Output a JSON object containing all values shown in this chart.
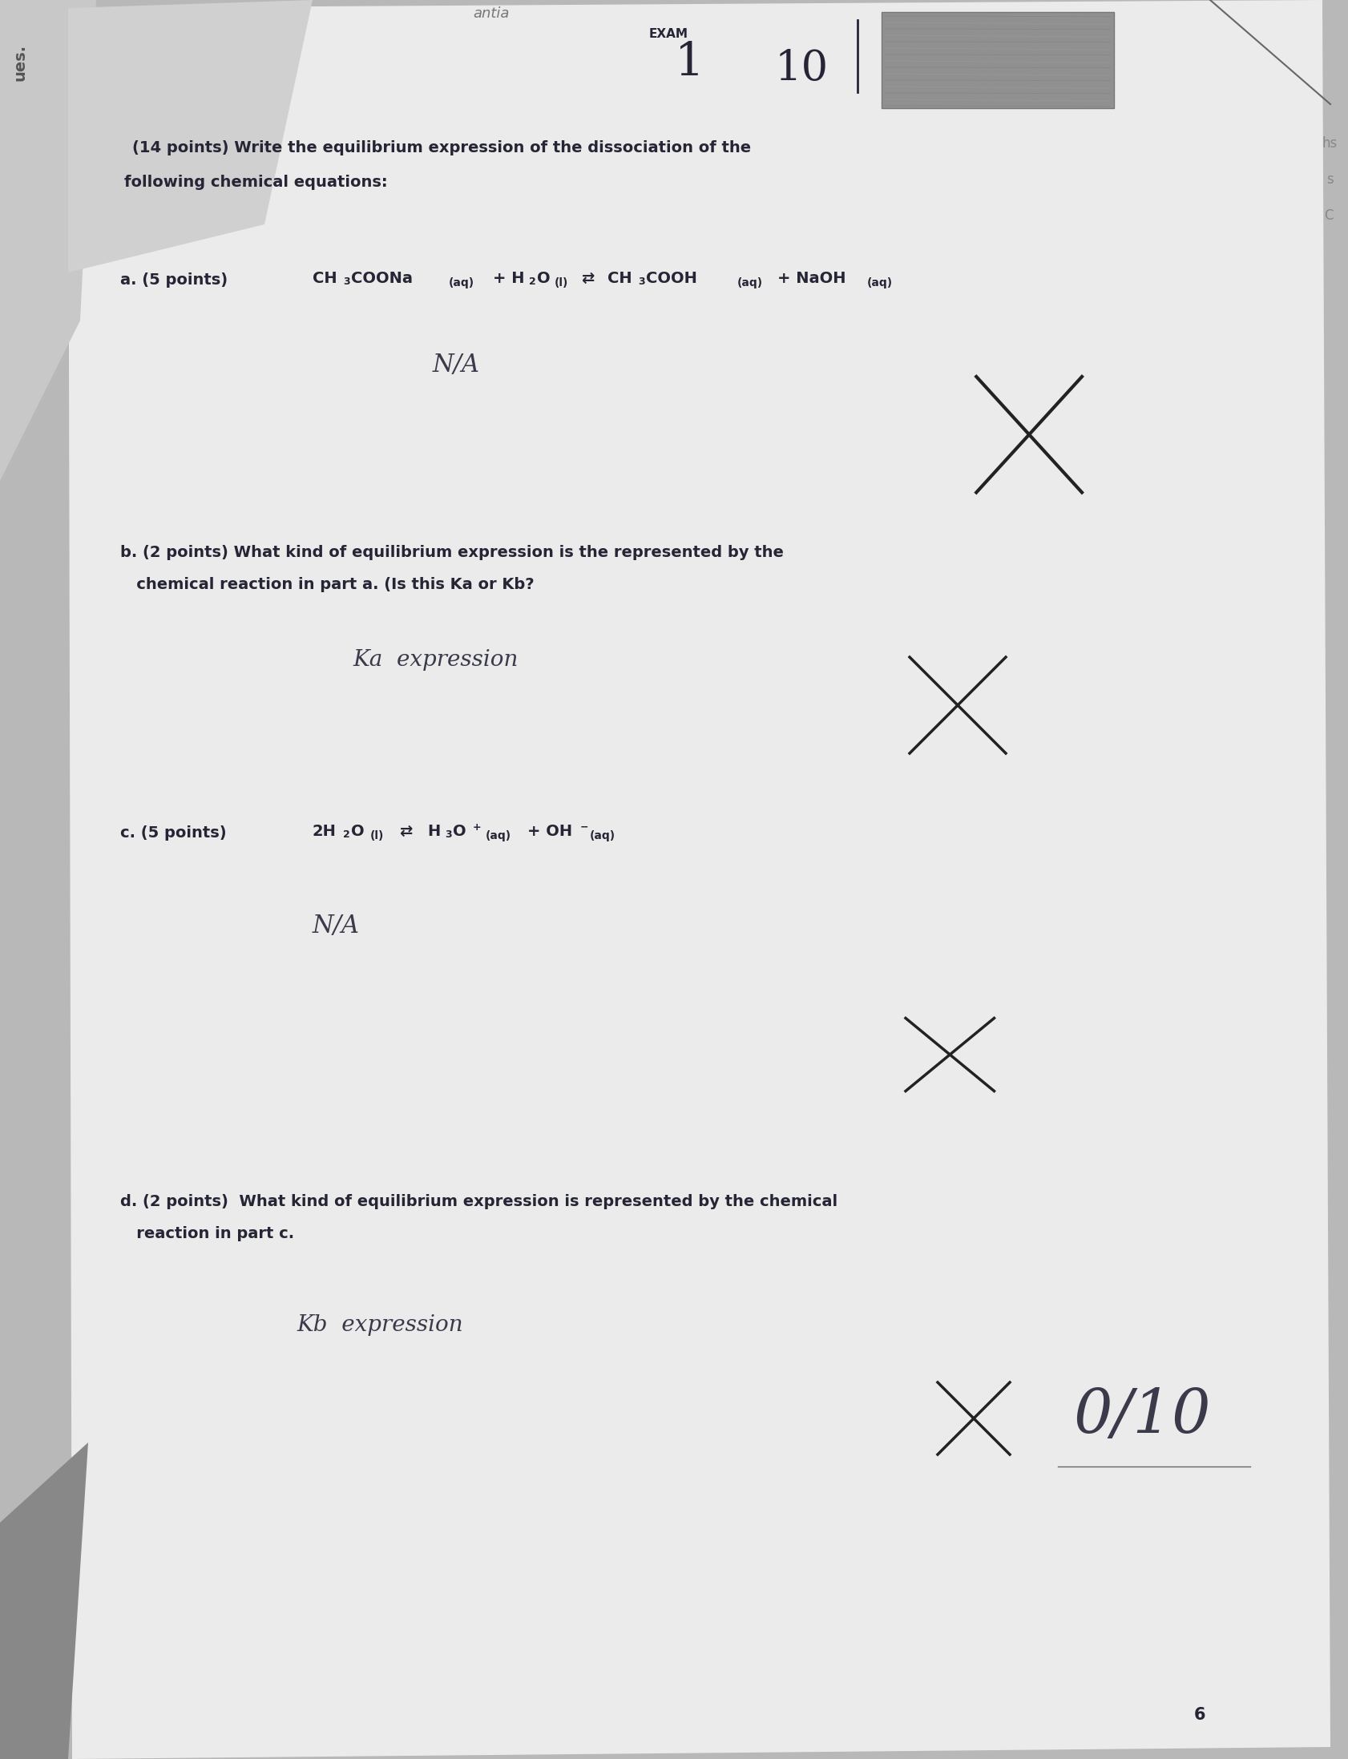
{
  "bg_color": "#b8b8b8",
  "paper_color": "#e2e2e2",
  "paper_color_light": "#ebebeb",
  "left_strip_color": "#a0a0a0",
  "top_fold_color": "#c0c0c0",
  "text_color": "#252535",
  "hand_color": "#3a3a4a",
  "photo_color": "#909090",
  "exam_label": "EXAM",
  "exam_number": "1",
  "exam_score": "10",
  "page_number": "6",
  "antia_text": "antia",
  "header_line1": "(14 points) Write the equilibrium expression of the dissociation of the",
  "header_line2": "following chemical equations:",
  "a_label": "a. (5 points)",
  "b_label_line1": "b. (2 points) What kind of equilibrium expression is the represented by the",
  "b_label_line2": "   chemical reaction in part a. (Is this Ka or Kb?",
  "c_label": "c. (5 points)",
  "d_label_line1": "d. (2 points)  What kind of equilibrium expression is represented by the chemical",
  "d_label_line2": "   reaction in part c.",
  "a_answer": "N/A",
  "b_answer": "Ka  expression",
  "c_answer": "N/A",
  "d_answer": "Kb  expression",
  "score": "0/10",
  "right_text1": "hs",
  "right_text2": "s",
  "right_text3": "C"
}
